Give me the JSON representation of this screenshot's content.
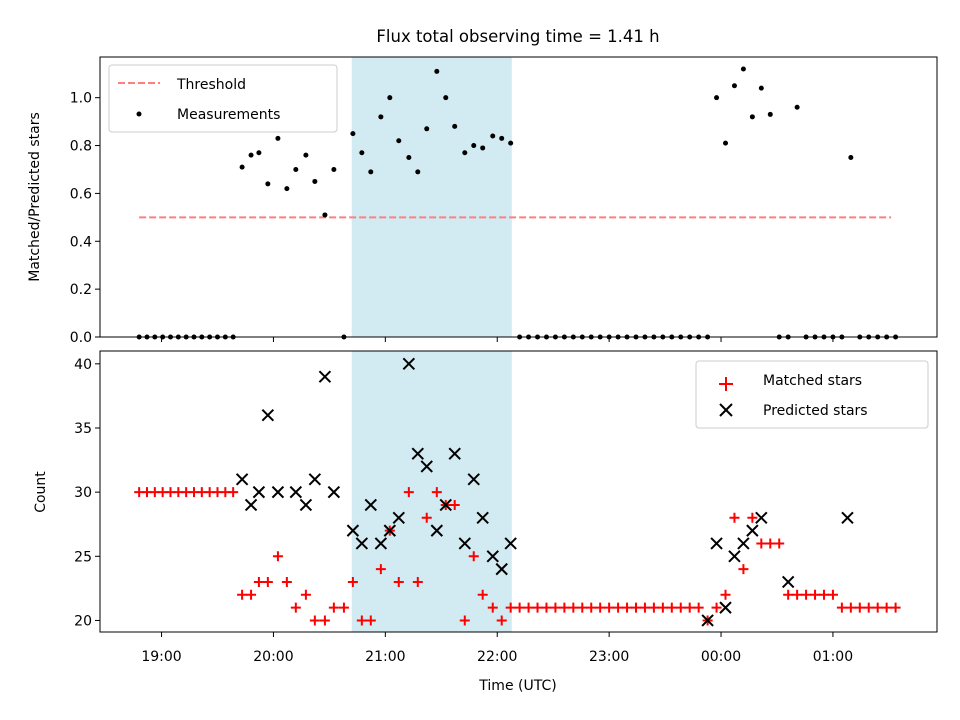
{
  "chart_data": [
    {
      "type": "scatter",
      "title": "Flux total observing time = 1.41 h",
      "xlabel": "",
      "ylabel": "Matched/Predicted stars",
      "x_unit": "hours (UTC, >24 = next day)",
      "xlim": [
        18.45,
        25.93
      ],
      "ylim": [
        0.0,
        1.17
      ],
      "yticks": [
        "0.0",
        "0.2",
        "0.4",
        "0.6",
        "0.8",
        "1.0"
      ],
      "highlight_span": [
        20.7,
        22.13
      ],
      "colors": {
        "threshold": "#ff7f7f",
        "measurements": "#000000",
        "span": "#add8e6"
      },
      "legend_position": "upper left",
      "series": [
        {
          "name": "Threshold",
          "style": "dashed-line",
          "x": [
            18.8,
            25.52
          ],
          "y": [
            0.5,
            0.5
          ]
        },
        {
          "name": "Measurements",
          "style": "dots",
          "x": [
            18.8,
            18.87,
            18.94,
            19.01,
            19.08,
            19.15,
            19.22,
            19.29,
            19.36,
            19.43,
            19.5,
            19.57,
            19.64,
            19.72,
            19.8,
            19.87,
            19.95,
            20.04,
            20.12,
            20.2,
            20.29,
            20.37,
            20.46,
            20.54,
            20.63,
            20.71,
            20.79,
            20.87,
            20.96,
            21.04,
            21.12,
            21.21,
            21.29,
            21.37,
            21.46,
            21.54,
            21.62,
            21.71,
            21.79,
            21.87,
            21.96,
            22.04,
            22.12,
            22.2,
            22.28,
            22.36,
            22.44,
            22.52,
            22.6,
            22.68,
            22.76,
            22.84,
            22.92,
            23.0,
            23.08,
            23.16,
            23.24,
            23.32,
            23.4,
            23.48,
            23.56,
            23.64,
            23.72,
            23.8,
            23.88,
            23.96,
            24.04,
            24.12,
            24.2,
            24.28,
            24.36,
            24.44,
            24.52,
            24.6,
            24.68,
            24.76,
            24.84,
            24.92,
            25.0,
            25.08,
            25.16,
            25.24,
            25.32,
            25.4,
            25.48,
            25.56
          ],
          "y": [
            0,
            0,
            0,
            0,
            0,
            0,
            0,
            0,
            0,
            0,
            0,
            0,
            0,
            0.71,
            0.76,
            0.77,
            0.64,
            0.83,
            0.62,
            0.7,
            0.76,
            0.65,
            0.51,
            0.7,
            0,
            0.85,
            0.77,
            0.69,
            0.92,
            1.0,
            0.82,
            0.75,
            0.69,
            0.87,
            1.11,
            1.0,
            0.88,
            0.77,
            0.8,
            0.79,
            0.84,
            0.83,
            0.81,
            0,
            0,
            0,
            0,
            0,
            0,
            0,
            0,
            0,
            0,
            0,
            0,
            0,
            0,
            0,
            0,
            0,
            0,
            0,
            0,
            0,
            0,
            1.0,
            0.81,
            1.05,
            1.12,
            0.92,
            1.04,
            0.93,
            0,
            0,
            0.96,
            0,
            0,
            0,
            0,
            0,
            0.75,
            0,
            0,
            0,
            0,
            0
          ]
        }
      ]
    },
    {
      "type": "scatter",
      "title": "",
      "xlabel": "Time (UTC)",
      "ylabel": "Count",
      "xlim": [
        18.45,
        25.93
      ],
      "ylim": [
        19.1,
        41.0
      ],
      "xticks": [
        {
          "pos": 19.0,
          "label": "19:00"
        },
        {
          "pos": 20.0,
          "label": "20:00"
        },
        {
          "pos": 21.0,
          "label": "21:00"
        },
        {
          "pos": 22.0,
          "label": "22:00"
        },
        {
          "pos": 23.0,
          "label": "23:00"
        },
        {
          "pos": 24.0,
          "label": "00:00"
        },
        {
          "pos": 25.0,
          "label": "01:00"
        }
      ],
      "yticks": [
        "20",
        "25",
        "30",
        "35",
        "40"
      ],
      "highlight_span": [
        20.7,
        22.13
      ],
      "colors": {
        "matched": "#ff0000",
        "predicted": "#000000",
        "span": "#add8e6"
      },
      "legend_position": "upper right",
      "series": [
        {
          "name": "Matched stars",
          "marker": "plus",
          "x": [
            18.8,
            18.87,
            18.94,
            19.01,
            19.08,
            19.15,
            19.22,
            19.29,
            19.36,
            19.43,
            19.5,
            19.57,
            19.64,
            19.72,
            19.8,
            19.87,
            19.95,
            20.04,
            20.12,
            20.2,
            20.29,
            20.37,
            20.46,
            20.54,
            20.63,
            20.71,
            20.79,
            20.87,
            20.96,
            21.04,
            21.12,
            21.21,
            21.29,
            21.37,
            21.46,
            21.54,
            21.62,
            21.71,
            21.79,
            21.87,
            21.96,
            22.04,
            22.12,
            22.2,
            22.28,
            22.36,
            22.44,
            22.52,
            22.6,
            22.68,
            22.76,
            22.84,
            22.92,
            23.0,
            23.08,
            23.16,
            23.24,
            23.32,
            23.4,
            23.48,
            23.56,
            23.64,
            23.72,
            23.8,
            23.88,
            23.96,
            24.04,
            24.12,
            24.2,
            24.28,
            24.36,
            24.44,
            24.52,
            24.6,
            24.68,
            24.76,
            24.84,
            24.92,
            25.0,
            25.08,
            25.16,
            25.24,
            25.32,
            25.4,
            25.48,
            25.56
          ],
          "y": [
            30,
            30,
            30,
            30,
            30,
            30,
            30,
            30,
            30,
            30,
            30,
            30,
            30,
            22,
            22,
            23,
            23,
            25,
            23,
            21,
            22,
            20,
            20,
            21,
            21,
            23,
            20,
            20,
            24,
            27,
            23,
            30,
            23,
            28,
            30,
            29,
            29,
            20,
            25,
            22,
            21,
            20,
            21,
            21,
            21,
            21,
            21,
            21,
            21,
            21,
            21,
            21,
            21,
            21,
            21,
            21,
            21,
            21,
            21,
            21,
            21,
            21,
            21,
            21,
            20,
            21,
            22,
            28,
            24,
            28,
            26,
            26,
            26,
            22,
            22,
            22,
            22,
            22,
            22,
            21,
            21,
            21,
            21,
            21,
            21,
            21
          ]
        },
        {
          "name": "Predicted stars",
          "marker": "x",
          "x": [
            19.72,
            19.8,
            19.87,
            19.95,
            20.04,
            20.2,
            20.29,
            20.37,
            20.46,
            20.54,
            20.71,
            20.79,
            20.87,
            20.96,
            21.04,
            21.12,
            21.21,
            21.29,
            21.37,
            21.46,
            21.54,
            21.62,
            21.71,
            21.79,
            21.87,
            21.96,
            22.04,
            22.12,
            23.88,
            23.96,
            24.04,
            24.12,
            24.2,
            24.28,
            24.36,
            24.6,
            25.13
          ],
          "y": [
            31,
            29,
            30,
            36,
            30,
            30,
            29,
            31,
            39,
            30,
            27,
            26,
            29,
            26,
            27,
            28,
            40,
            33,
            32,
            27,
            29,
            33,
            26,
            31,
            28,
            25,
            24,
            26,
            20,
            26,
            21,
            25,
            26,
            27,
            28,
            23,
            28
          ]
        }
      ]
    }
  ]
}
